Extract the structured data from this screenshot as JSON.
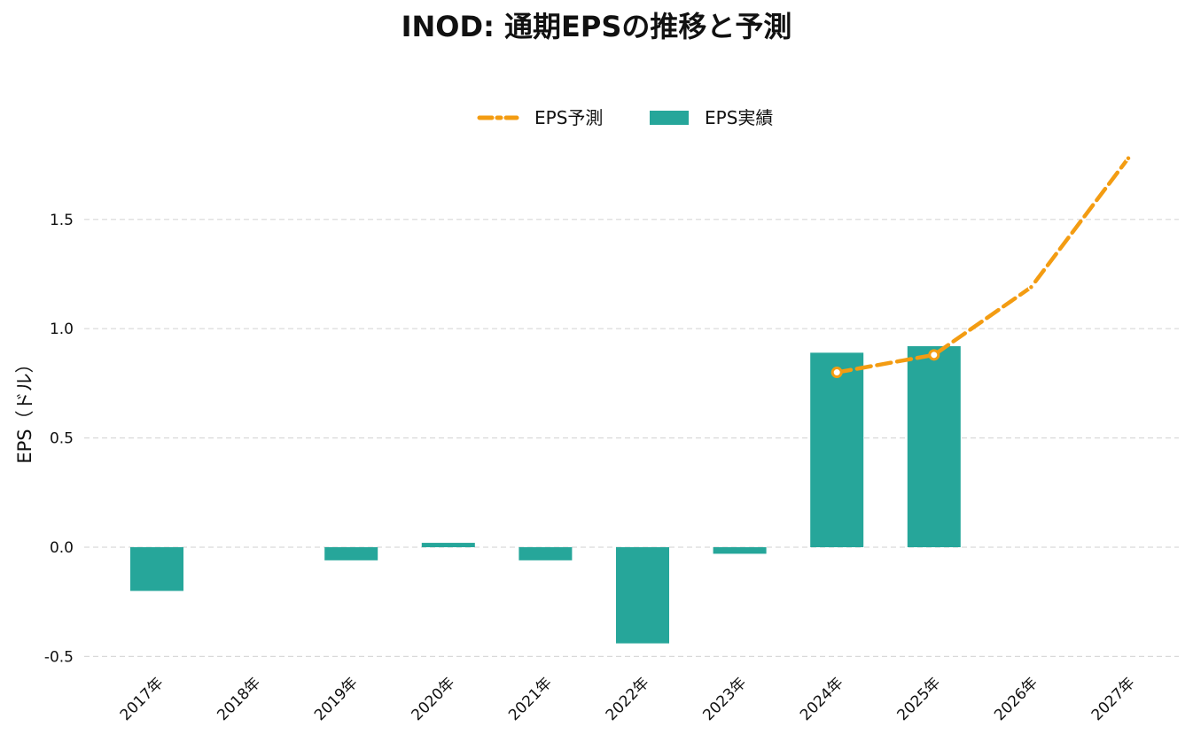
{
  "chart_data": {
    "type": "bar",
    "title": "INOD: 通期EPSの推移と予測",
    "ylabel": "EPS（ドル）",
    "xlabel": "",
    "ylim": [
      -0.5,
      1.5
    ],
    "yticks": [
      "-0.5",
      "0.0",
      "0.5",
      "1.0",
      "1.5"
    ],
    "grid": "horizontal dashed",
    "legend_position": "top-center",
    "categories": [
      "2017年",
      "2018年",
      "2019年",
      "2020年",
      "2021年",
      "2022年",
      "2023年",
      "2024年",
      "2025年",
      "2026年",
      "2027年"
    ],
    "series": [
      {
        "name": "EPS予測",
        "kind": "line",
        "style": "dashed with markers",
        "color": "#f39c12",
        "values": [
          null,
          null,
          null,
          null,
          null,
          null,
          null,
          0.8,
          0.88,
          1.19,
          1.78
        ]
      },
      {
        "name": "EPS実績",
        "kind": "bar",
        "color": "#26a69a",
        "values": [
          -0.2,
          null,
          -0.06,
          0.02,
          -0.06,
          -0.44,
          -0.03,
          0.89,
          0.92,
          null,
          null
        ]
      }
    ]
  }
}
